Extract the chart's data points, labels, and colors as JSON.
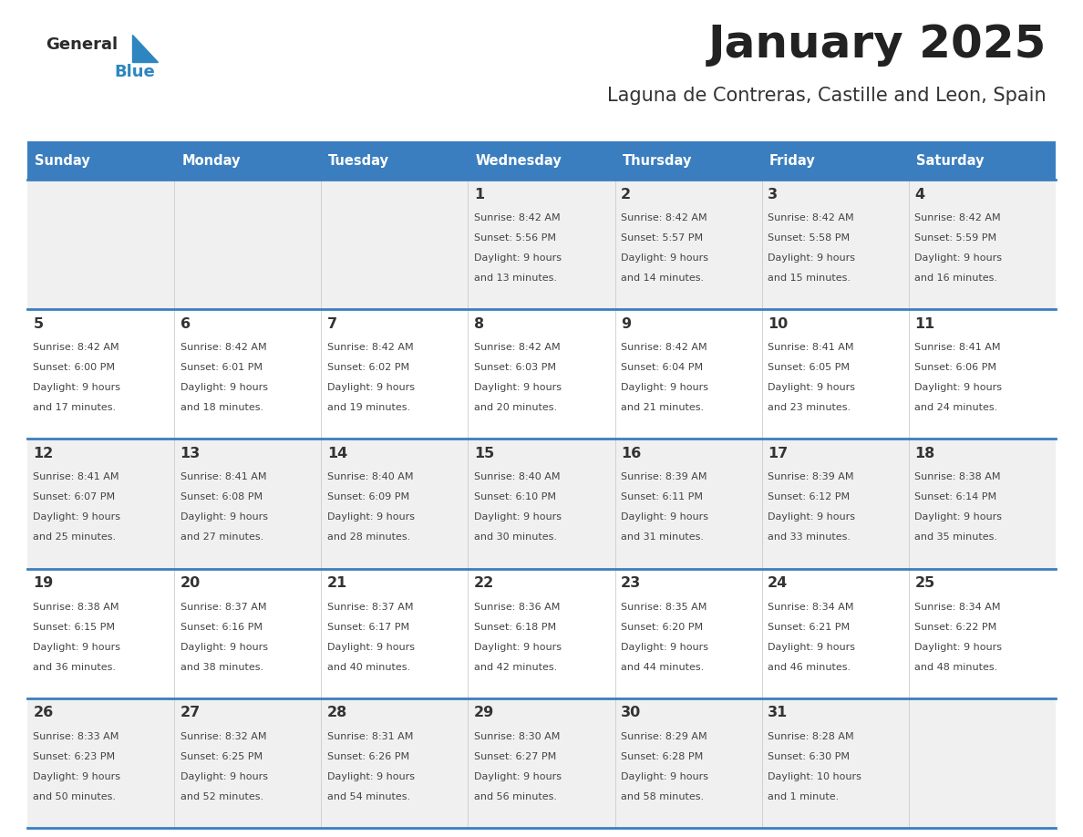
{
  "title": "January 2025",
  "subtitle": "Laguna de Contreras, Castille and Leon, Spain",
  "days_of_week": [
    "Sunday",
    "Monday",
    "Tuesday",
    "Wednesday",
    "Thursday",
    "Friday",
    "Saturday"
  ],
  "header_bg": "#3a7ebf",
  "header_text": "#ffffff",
  "row_bg_odd": "#f0f0f0",
  "row_bg_even": "#ffffff",
  "divider_color": "#3a7ebf",
  "cell_text_color": "#444444",
  "day_num_color": "#333333",
  "title_color": "#222222",
  "subtitle_color": "#333333",
  "calendar_data": [
    [
      {
        "day": null,
        "sunrise": null,
        "sunset": null,
        "daylight": null
      },
      {
        "day": null,
        "sunrise": null,
        "sunset": null,
        "daylight": null
      },
      {
        "day": null,
        "sunrise": null,
        "sunset": null,
        "daylight": null
      },
      {
        "day": 1,
        "sunrise": "8:42 AM",
        "sunset": "5:56 PM",
        "daylight": "9 hours and 13 minutes."
      },
      {
        "day": 2,
        "sunrise": "8:42 AM",
        "sunset": "5:57 PM",
        "daylight": "9 hours and 14 minutes."
      },
      {
        "day": 3,
        "sunrise": "8:42 AM",
        "sunset": "5:58 PM",
        "daylight": "9 hours and 15 minutes."
      },
      {
        "day": 4,
        "sunrise": "8:42 AM",
        "sunset": "5:59 PM",
        "daylight": "9 hours and 16 minutes."
      }
    ],
    [
      {
        "day": 5,
        "sunrise": "8:42 AM",
        "sunset": "6:00 PM",
        "daylight": "9 hours and 17 minutes."
      },
      {
        "day": 6,
        "sunrise": "8:42 AM",
        "sunset": "6:01 PM",
        "daylight": "9 hours and 18 minutes."
      },
      {
        "day": 7,
        "sunrise": "8:42 AM",
        "sunset": "6:02 PM",
        "daylight": "9 hours and 19 minutes."
      },
      {
        "day": 8,
        "sunrise": "8:42 AM",
        "sunset": "6:03 PM",
        "daylight": "9 hours and 20 minutes."
      },
      {
        "day": 9,
        "sunrise": "8:42 AM",
        "sunset": "6:04 PM",
        "daylight": "9 hours and 21 minutes."
      },
      {
        "day": 10,
        "sunrise": "8:41 AM",
        "sunset": "6:05 PM",
        "daylight": "9 hours and 23 minutes."
      },
      {
        "day": 11,
        "sunrise": "8:41 AM",
        "sunset": "6:06 PM",
        "daylight": "9 hours and 24 minutes."
      }
    ],
    [
      {
        "day": 12,
        "sunrise": "8:41 AM",
        "sunset": "6:07 PM",
        "daylight": "9 hours and 25 minutes."
      },
      {
        "day": 13,
        "sunrise": "8:41 AM",
        "sunset": "6:08 PM",
        "daylight": "9 hours and 27 minutes."
      },
      {
        "day": 14,
        "sunrise": "8:40 AM",
        "sunset": "6:09 PM",
        "daylight": "9 hours and 28 minutes."
      },
      {
        "day": 15,
        "sunrise": "8:40 AM",
        "sunset": "6:10 PM",
        "daylight": "9 hours and 30 minutes."
      },
      {
        "day": 16,
        "sunrise": "8:39 AM",
        "sunset": "6:11 PM",
        "daylight": "9 hours and 31 minutes."
      },
      {
        "day": 17,
        "sunrise": "8:39 AM",
        "sunset": "6:12 PM",
        "daylight": "9 hours and 33 minutes."
      },
      {
        "day": 18,
        "sunrise": "8:38 AM",
        "sunset": "6:14 PM",
        "daylight": "9 hours and 35 minutes."
      }
    ],
    [
      {
        "day": 19,
        "sunrise": "8:38 AM",
        "sunset": "6:15 PM",
        "daylight": "9 hours and 36 minutes."
      },
      {
        "day": 20,
        "sunrise": "8:37 AM",
        "sunset": "6:16 PM",
        "daylight": "9 hours and 38 minutes."
      },
      {
        "day": 21,
        "sunrise": "8:37 AM",
        "sunset": "6:17 PM",
        "daylight": "9 hours and 40 minutes."
      },
      {
        "day": 22,
        "sunrise": "8:36 AM",
        "sunset": "6:18 PM",
        "daylight": "9 hours and 42 minutes."
      },
      {
        "day": 23,
        "sunrise": "8:35 AM",
        "sunset": "6:20 PM",
        "daylight": "9 hours and 44 minutes."
      },
      {
        "day": 24,
        "sunrise": "8:34 AM",
        "sunset": "6:21 PM",
        "daylight": "9 hours and 46 minutes."
      },
      {
        "day": 25,
        "sunrise": "8:34 AM",
        "sunset": "6:22 PM",
        "daylight": "9 hours and 48 minutes."
      }
    ],
    [
      {
        "day": 26,
        "sunrise": "8:33 AM",
        "sunset": "6:23 PM",
        "daylight": "9 hours and 50 minutes."
      },
      {
        "day": 27,
        "sunrise": "8:32 AM",
        "sunset": "6:25 PM",
        "daylight": "9 hours and 52 minutes."
      },
      {
        "day": 28,
        "sunrise": "8:31 AM",
        "sunset": "6:26 PM",
        "daylight": "9 hours and 54 minutes."
      },
      {
        "day": 29,
        "sunrise": "8:30 AM",
        "sunset": "6:27 PM",
        "daylight": "9 hours and 56 minutes."
      },
      {
        "day": 30,
        "sunrise": "8:29 AM",
        "sunset": "6:28 PM",
        "daylight": "9 hours and 58 minutes."
      },
      {
        "day": 31,
        "sunrise": "8:28 AM",
        "sunset": "6:30 PM",
        "daylight": "10 hours and 1 minute."
      },
      {
        "day": null,
        "sunrise": null,
        "sunset": null,
        "daylight": null
      }
    ]
  ]
}
